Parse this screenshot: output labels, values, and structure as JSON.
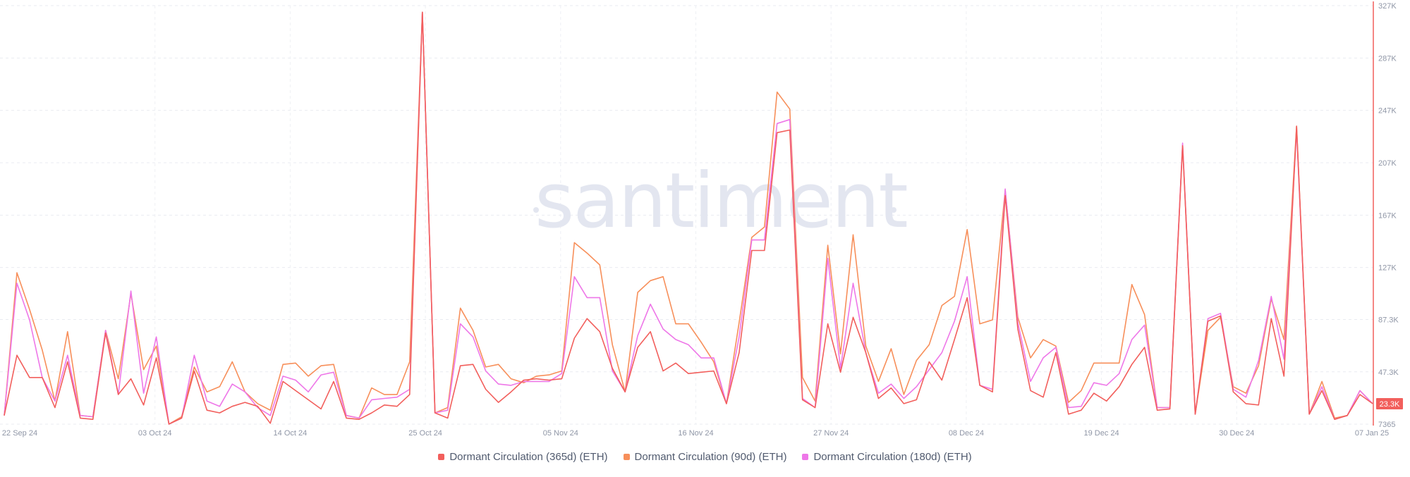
{
  "watermark": "santiment",
  "latest_value_badge": "23.3K",
  "chart_data": {
    "type": "line",
    "title": "",
    "xlabel": "",
    "ylabel": "",
    "x_tick_labels": [
      "22 Sep 24",
      "03 Oct 24",
      "14 Oct 24",
      "25 Oct 24",
      "05 Nov 24",
      "16 Nov 24",
      "27 Nov 24",
      "08 Dec 24",
      "19 Dec 24",
      "30 Dec 24",
      "07 Jan 25"
    ],
    "y_tick_labels": [
      "7365",
      "47.3K",
      "87.3K",
      "127K",
      "167K",
      "207K",
      "247K",
      "287K",
      "327K"
    ],
    "ylim": [
      7365,
      327000
    ],
    "grid": true,
    "legend_position": "bottom-center",
    "x_start": "2024-09-22",
    "x_end": "2025-01-07",
    "series": [
      {
        "name": "Dormant Circulation (365d) (ETH)",
        "color": "#f25f5c",
        "values": [
          14000,
          60000,
          43000,
          43000,
          20000,
          55000,
          12000,
          11000,
          77000,
          30000,
          42000,
          22000,
          58000,
          7400,
          12000,
          48000,
          18000,
          16000,
          21000,
          24000,
          21000,
          8000,
          40000,
          33000,
          26000,
          19000,
          40000,
          12000,
          11000,
          16000,
          22000,
          21000,
          30000,
          322000,
          16000,
          12000,
          52000,
          53000,
          34000,
          24000,
          32000,
          41000,
          42000,
          41000,
          42000,
          73000,
          88000,
          78000,
          50000,
          32000,
          66000,
          78000,
          48000,
          54000,
          46000,
          47000,
          48000,
          23000,
          62000,
          140000,
          140000,
          230000,
          232000,
          26000,
          20000,
          84000,
          47000,
          89000,
          62000,
          27000,
          35000,
          23000,
          26000,
          55000,
          41000,
          72000,
          104000,
          37000,
          32000,
          182000,
          80000,
          33000,
          28000,
          62000,
          15000,
          18000,
          31000,
          25000,
          36000,
          53000,
          66000,
          18000,
          19000,
          220000,
          15000,
          86000,
          90000,
          32000,
          23000,
          22000,
          88000,
          44000,
          235000,
          15000,
          33000,
          11000,
          14000,
          30000,
          23000
        ]
      },
      {
        "name": "Dormant Circulation (90d) (ETH)",
        "color": "#f78f5a",
        "values": [
          14000,
          123000,
          95000,
          64000,
          25000,
          78000,
          14000,
          13000,
          79000,
          42000,
          107000,
          49000,
          67000,
          7400,
          13000,
          51000,
          32000,
          36000,
          55000,
          32000,
          23000,
          18000,
          53000,
          54000,
          44000,
          52000,
          53000,
          14000,
          12000,
          35000,
          30000,
          30000,
          55000,
          322000,
          16000,
          20000,
          96000,
          79000,
          51000,
          53000,
          42000,
          39000,
          44000,
          45000,
          48000,
          146000,
          138000,
          129000,
          68000,
          32000,
          108000,
          117000,
          120000,
          84000,
          84000,
          70000,
          55000,
          23000,
          85000,
          150000,
          158000,
          261000,
          248000,
          43000,
          25000,
          144000,
          61000,
          152000,
          67000,
          40000,
          65000,
          30000,
          56000,
          68000,
          98000,
          105000,
          156000,
          84000,
          87000,
          186000,
          89000,
          58000,
          72000,
          67000,
          24000,
          33000,
          54000,
          54000,
          54000,
          114000,
          91000,
          20000,
          20000,
          221000,
          15000,
          79000,
          89000,
          36000,
          31000,
          52000,
          103000,
          72000,
          235000,
          15000,
          40000,
          12000,
          14000,
          33000,
          23000
        ]
      },
      {
        "name": "Dormant Circulation (180d) (ETH)",
        "color": "#ee77e8",
        "values": [
          14000,
          115000,
          87000,
          43000,
          25000,
          60000,
          14000,
          13000,
          79000,
          30000,
          109000,
          31000,
          74000,
          7400,
          12000,
          60000,
          25000,
          21000,
          38000,
          32000,
          20000,
          14000,
          44000,
          41000,
          32000,
          45000,
          47000,
          14000,
          12000,
          26000,
          27000,
          28000,
          34000,
          322000,
          16000,
          18000,
          84000,
          74000,
          48000,
          38000,
          37000,
          40000,
          40000,
          40000,
          46000,
          120000,
          104000,
          104000,
          48000,
          32000,
          75000,
          99000,
          80000,
          72000,
          68000,
          58000,
          58000,
          23000,
          74000,
          148000,
          148000,
          237000,
          240000,
          27000,
          20000,
          134000,
          50000,
          115000,
          62000,
          31000,
          38000,
          27000,
          36000,
          49000,
          62000,
          86000,
          120000,
          37000,
          34000,
          187000,
          85000,
          40000,
          58000,
          66000,
          20000,
          21000,
          39000,
          37000,
          46000,
          72000,
          83000,
          20000,
          20000,
          222000,
          15000,
          88000,
          92000,
          34000,
          28000,
          56000,
          105000,
          57000,
          232000,
          15000,
          36000,
          11000,
          14000,
          33000,
          23000
        ]
      }
    ]
  }
}
